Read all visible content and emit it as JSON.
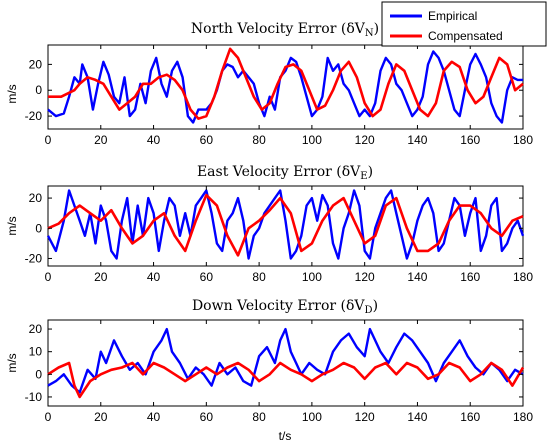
{
  "chart_data": {
    "type": "line",
    "figure": {
      "xlabel": "t/s",
      "legend": {
        "placement": "top-right",
        "entries": [
          {
            "name": "Empirical",
            "color": "#0000ff"
          },
          {
            "name": "Compensated",
            "color": "#ff0000"
          }
        ]
      }
    },
    "panels": [
      {
        "title": "North Velocity Error (δV",
        "title_sub": "N",
        "title_close": ")",
        "ylabel": "m/s",
        "xlim": [
          0,
          180
        ],
        "ylim": [
          -30,
          35
        ],
        "xticks": [
          0,
          20,
          40,
          60,
          80,
          100,
          120,
          140,
          160,
          180
        ],
        "yticks": [
          -20,
          0,
          20
        ],
        "grid": false,
        "series": [
          {
            "name": "Empirical",
            "color": "#0000ff",
            "x": [
              0,
              3,
              6,
              8,
              10,
              12,
              13,
              15,
              17,
              19,
              21,
              23,
              25,
              27,
              29,
              31,
              33,
              35,
              37,
              39,
              41,
              43,
              45,
              47,
              49,
              51,
              53,
              55,
              57,
              60,
              62,
              64,
              66,
              68,
              70,
              72,
              74,
              76,
              78,
              80,
              82,
              84,
              86,
              88,
              90,
              92,
              94,
              96,
              98,
              100,
              102,
              104,
              106,
              108,
              110,
              112,
              114,
              116,
              118,
              120,
              122,
              124,
              126,
              128,
              130,
              132,
              134,
              136,
              138,
              140,
              142,
              144,
              146,
              148,
              150,
              152,
              154,
              156,
              158,
              160,
              162,
              164,
              166,
              168,
              170,
              172,
              174,
              176,
              178,
              180
            ],
            "y": [
              -15,
              -20,
              -18,
              -5,
              10,
              5,
              20,
              10,
              -15,
              5,
              22,
              12,
              -5,
              -10,
              10,
              -20,
              -15,
              5,
              -10,
              15,
              25,
              5,
              -5,
              15,
              22,
              10,
              -20,
              -25,
              -15,
              -15,
              -10,
              0,
              15,
              20,
              18,
              10,
              15,
              10,
              5,
              -10,
              -20,
              -5,
              -15,
              10,
              15,
              25,
              22,
              10,
              -5,
              -20,
              -15,
              -5,
              25,
              15,
              20,
              5,
              0,
              -10,
              -20,
              -15,
              -20,
              -10,
              15,
              25,
              20,
              5,
              0,
              -10,
              -20,
              -15,
              -5,
              20,
              30,
              25,
              15,
              0,
              -15,
              -20,
              0,
              20,
              28,
              20,
              10,
              -10,
              -20,
              -25,
              0,
              10,
              8,
              8
            ]
          },
          {
            "name": "Compensated",
            "color": "#ff0000",
            "x": [
              0,
              5,
              10,
              12,
              15,
              18,
              21,
              24,
              27,
              30,
              33,
              36,
              39,
              42,
              45,
              48,
              51,
              54,
              57,
              60,
              63,
              66,
              69,
              72,
              75,
              78,
              81,
              84,
              87,
              90,
              93,
              96,
              99,
              102,
              105,
              108,
              111,
              114,
              117,
              120,
              123,
              126,
              129,
              132,
              135,
              138,
              141,
              144,
              147,
              150,
              153,
              156,
              159,
              162,
              165,
              168,
              171,
              174,
              177,
              180
            ],
            "y": [
              -5,
              -5,
              0,
              5,
              10,
              8,
              5,
              -5,
              -15,
              -10,
              -5,
              5,
              5,
              10,
              12,
              8,
              0,
              -15,
              -22,
              -20,
              -5,
              15,
              32,
              25,
              10,
              -5,
              -15,
              -10,
              5,
              18,
              20,
              15,
              0,
              -15,
              -12,
              0,
              15,
              22,
              10,
              -10,
              -20,
              -15,
              5,
              20,
              15,
              0,
              -15,
              -20,
              -10,
              15,
              22,
              18,
              0,
              -10,
              -5,
              10,
              25,
              20,
              0,
              5
            ]
          }
        ]
      },
      {
        "title": "East Velocity Error (δV",
        "title_sub": "E",
        "title_close": ")",
        "ylabel": "m/s",
        "xlim": [
          0,
          180
        ],
        "ylim": [
          -25,
          28
        ],
        "xticks": [
          0,
          20,
          40,
          60,
          80,
          100,
          120,
          140,
          160,
          180
        ],
        "yticks": [
          -20,
          0,
          20
        ],
        "grid": false,
        "series": [
          {
            "name": "Empirical",
            "color": "#0000ff",
            "x": [
              0,
              3,
              6,
              8,
              10,
              12,
              14,
              16,
              18,
              20,
              22,
              24,
              26,
              28,
              30,
              32,
              34,
              36,
              38,
              40,
              42,
              44,
              46,
              48,
              50,
              52,
              54,
              56,
              58,
              60,
              62,
              64,
              66,
              68,
              70,
              72,
              74,
              76,
              78,
              80,
              82,
              84,
              86,
              88,
              90,
              92,
              94,
              96,
              98,
              100,
              102,
              104,
              106,
              108,
              110,
              112,
              114,
              116,
              118,
              120,
              122,
              124,
              126,
              128,
              130,
              132,
              134,
              136,
              138,
              140,
              142,
              144,
              146,
              148,
              150,
              152,
              154,
              156,
              158,
              160,
              162,
              164,
              166,
              168,
              170,
              172,
              174,
              176,
              178,
              180
            ],
            "y": [
              -5,
              -15,
              5,
              25,
              15,
              5,
              -5,
              10,
              -10,
              15,
              5,
              -15,
              -20,
              5,
              20,
              -10,
              15,
              -5,
              20,
              10,
              -15,
              5,
              20,
              15,
              -5,
              10,
              -5,
              15,
              20,
              25,
              10,
              -10,
              -15,
              5,
              10,
              20,
              5,
              -20,
              -5,
              0,
              10,
              15,
              20,
              25,
              5,
              -20,
              -15,
              -5,
              15,
              20,
              5,
              22,
              15,
              -10,
              -20,
              0,
              10,
              25,
              15,
              -15,
              -20,
              0,
              10,
              20,
              25,
              10,
              -5,
              -20,
              -10,
              5,
              15,
              20,
              10,
              -15,
              -10,
              5,
              20,
              15,
              -5,
              10,
              20,
              -15,
              -5,
              15,
              20,
              -15,
              -10,
              0,
              5,
              -5
            ]
          },
          {
            "name": "Compensated",
            "color": "#ff0000",
            "x": [
              0,
              4,
              8,
              12,
              16,
              20,
              24,
              28,
              32,
              36,
              40,
              44,
              48,
              52,
              56,
              60,
              64,
              68,
              72,
              76,
              80,
              84,
              88,
              92,
              96,
              100,
              104,
              108,
              112,
              116,
              120,
              124,
              128,
              132,
              136,
              140,
              144,
              148,
              152,
              156,
              160,
              164,
              168,
              172,
              176,
              180
            ],
            "y": [
              0,
              3,
              10,
              15,
              10,
              5,
              12,
              0,
              -10,
              -5,
              5,
              10,
              -5,
              -15,
              5,
              22,
              15,
              -5,
              -18,
              0,
              5,
              12,
              20,
              10,
              -15,
              -10,
              5,
              15,
              20,
              5,
              -10,
              -5,
              15,
              20,
              0,
              -15,
              -15,
              -10,
              5,
              15,
              15,
              10,
              0,
              -5,
              5,
              8
            ]
          }
        ]
      },
      {
        "title": "Down Velocity Error (δV",
        "title_sub": "D",
        "title_close": ")",
        "ylabel": "m/s",
        "xlim": [
          0,
          180
        ],
        "ylim": [
          -14,
          24
        ],
        "xticks": [
          0,
          20,
          40,
          60,
          80,
          100,
          120,
          140,
          160,
          180
        ],
        "yticks": [
          -10,
          0,
          10,
          20
        ],
        "grid": false,
        "series": [
          {
            "name": "Empirical",
            "color": "#0000ff",
            "x": [
              0,
              3,
              6,
              9,
              12,
              15,
              18,
              20,
              22,
              25,
              28,
              31,
              34,
              37,
              40,
              43,
              45,
              47,
              50,
              53,
              56,
              59,
              62,
              65,
              68,
              71,
              74,
              77,
              80,
              83,
              86,
              88,
              90,
              92,
              94,
              96,
              99,
              102,
              105,
              108,
              111,
              114,
              117,
              120,
              122,
              124,
              126,
              129,
              132,
              135,
              138,
              141,
              144,
              147,
              150,
              153,
              156,
              159,
              162,
              165,
              168,
              171,
              174,
              177,
              180
            ],
            "y": [
              -5,
              -3,
              0,
              -5,
              -8,
              2,
              -2,
              10,
              5,
              15,
              8,
              2,
              5,
              0,
              10,
              15,
              20,
              10,
              5,
              -2,
              3,
              0,
              -5,
              5,
              0,
              3,
              -3,
              -5,
              8,
              12,
              5,
              15,
              20,
              10,
              5,
              0,
              5,
              2,
              0,
              10,
              15,
              18,
              12,
              8,
              20,
              15,
              10,
              5,
              12,
              18,
              15,
              10,
              5,
              -3,
              5,
              10,
              15,
              8,
              3,
              0,
              5,
              2,
              -3,
              2,
              0
            ]
          },
          {
            "name": "Compensated",
            "color": "#ff0000",
            "x": [
              0,
              4,
              8,
              10,
              12,
              16,
              20,
              24,
              28,
              32,
              36,
              40,
              44,
              48,
              52,
              56,
              60,
              64,
              68,
              72,
              76,
              80,
              84,
              88,
              92,
              96,
              100,
              104,
              108,
              112,
              116,
              120,
              124,
              128,
              132,
              136,
              140,
              144,
              148,
              152,
              156,
              160,
              164,
              168,
              172,
              176,
              180
            ],
            "y": [
              0,
              3,
              5,
              -5,
              -10,
              -3,
              0,
              2,
              3,
              5,
              0,
              5,
              3,
              0,
              -3,
              0,
              3,
              0,
              3,
              5,
              2,
              -3,
              0,
              5,
              2,
              0,
              -3,
              0,
              2,
              5,
              3,
              -2,
              3,
              5,
              0,
              5,
              3,
              -2,
              0,
              5,
              3,
              -3,
              0,
              5,
              2,
              -5,
              3
            ]
          }
        ]
      }
    ]
  }
}
